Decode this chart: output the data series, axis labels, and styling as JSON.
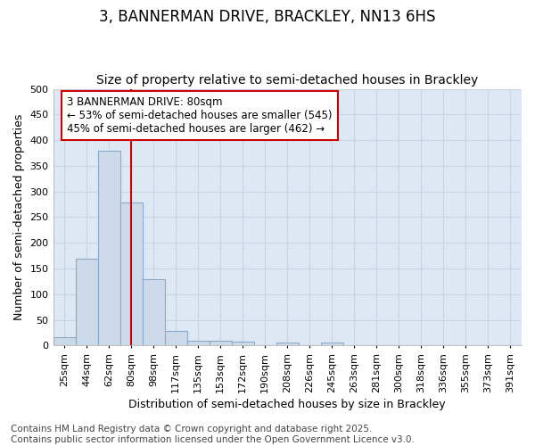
{
  "title_line1": "3, BANNERMAN DRIVE, BRACKLEY, NN13 6HS",
  "title_line2": "Size of property relative to semi-detached houses in Brackley",
  "xlabel": "Distribution of semi-detached houses by size in Brackley",
  "ylabel": "Number of semi-detached properties",
  "annotation_line1": "3 BANNERMAN DRIVE: 80sqm",
  "annotation_line2": "← 53% of semi-detached houses are smaller (545)",
  "annotation_line3": "45% of semi-detached houses are larger (462) →",
  "footnote_line1": "Contains HM Land Registry data © Crown copyright and database right 2025.",
  "footnote_line2": "Contains public sector information licensed under the Open Government Licence v3.0.",
  "property_size": 80,
  "categories": [
    "25sqm",
    "44sqm",
    "62sqm",
    "80sqm",
    "98sqm",
    "117sqm",
    "135sqm",
    "153sqm",
    "172sqm",
    "190sqm",
    "208sqm",
    "226sqm",
    "245sqm",
    "263sqm",
    "281sqm",
    "300sqm",
    "318sqm",
    "336sqm",
    "355sqm",
    "373sqm",
    "391sqm"
  ],
  "bin_edges": [
    16.5,
    34.5,
    52.5,
    70.5,
    88.5,
    106.5,
    124.5,
    142.5,
    160.5,
    178.5,
    196.5,
    214.5,
    232.5,
    250.5,
    268.5,
    286.5,
    304.5,
    322.5,
    340.5,
    358.5,
    376.5,
    394.5
  ],
  "values": [
    16,
    170,
    380,
    278,
    130,
    28,
    9,
    9,
    7,
    0,
    6,
    0,
    6,
    0,
    0,
    0,
    0,
    0,
    0,
    0,
    0
  ],
  "bar_color": "#ccd9ea",
  "bar_edge_color": "#8aaac8",
  "vline_color": "#cc0000",
  "vline_x": 80,
  "ylim": [
    0,
    500
  ],
  "yticks": [
    0,
    50,
    100,
    150,
    200,
    250,
    300,
    350,
    400,
    450,
    500
  ],
  "grid_color": "#c8d4e4",
  "fig_background": "#ffffff",
  "plot_bg_color": "#dde8f4",
  "annotation_box_edge": "#cc0000",
  "annotation_bg": "#ffffff",
  "title_fontsize": 12,
  "subtitle_fontsize": 10,
  "label_fontsize": 9,
  "tick_fontsize": 8,
  "footnote_fontsize": 7.5,
  "annotation_fontsize": 8.5
}
